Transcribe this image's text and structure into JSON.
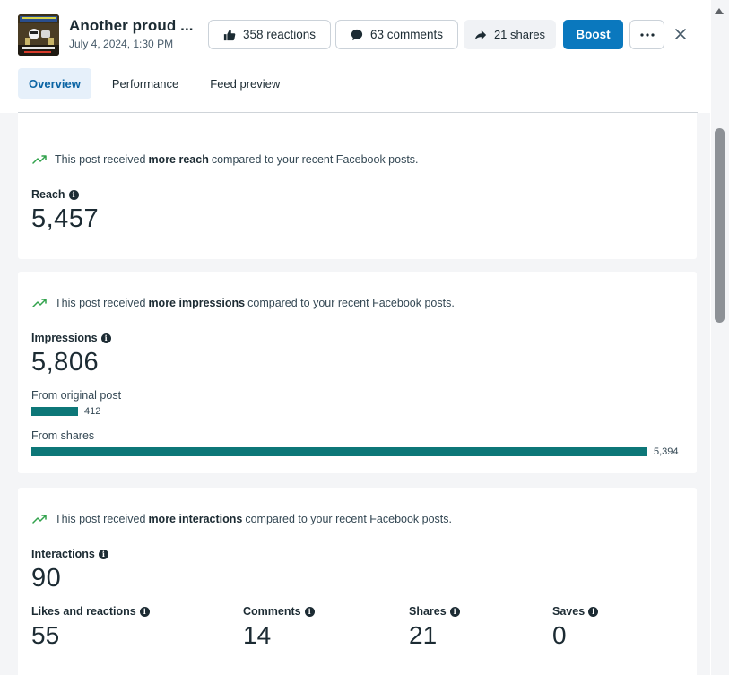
{
  "post": {
    "title": "Another proud ...",
    "date": "July 4, 2024, 1:30 PM"
  },
  "actions": {
    "reactions_label": "358 reactions",
    "comments_label": "63 comments",
    "shares_label": "21 shares",
    "boost_label": "Boost"
  },
  "tabs": [
    {
      "label": "Overview",
      "active": true
    },
    {
      "label": "Performance",
      "active": false
    },
    {
      "label": "Feed preview",
      "active": false
    }
  ],
  "reach": {
    "insight_pre": "This post received",
    "insight_bold": "more reach",
    "insight_post": "compared to your recent Facebook posts.",
    "label": "Reach",
    "value": "5,457"
  },
  "impressions": {
    "insight_pre": "This post received",
    "insight_bold": "more impressions",
    "insight_post": "compared to your recent Facebook posts.",
    "label": "Impressions",
    "value": "5,806",
    "from_original_label": "From original post",
    "from_original_value": "412",
    "from_original_fraction": 0.0709,
    "from_shares_label": "From shares",
    "from_shares_value": "5,394",
    "from_shares_fraction": 0.929
  },
  "interactions": {
    "insight_pre": "This post received",
    "insight_bold": "more interactions",
    "insight_post": "compared to your recent Facebook posts.",
    "label": "Interactions",
    "value": "90",
    "breakdown": [
      {
        "label": "Likes and reactions",
        "value": "55"
      },
      {
        "label": "Comments",
        "value": "14"
      },
      {
        "label": "Shares",
        "value": "21"
      },
      {
        "label": "Saves",
        "value": "0"
      }
    ]
  },
  "colors": {
    "accent": "#0a78be",
    "bar": "#0d7778",
    "trend": "#31a24c"
  }
}
